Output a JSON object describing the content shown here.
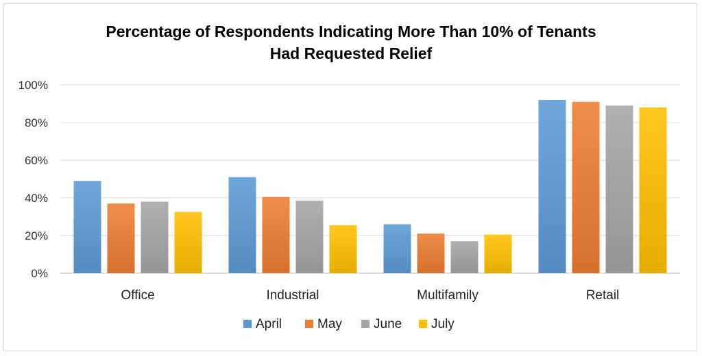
{
  "chart_data": {
    "type": "bar",
    "title_line1": "Percentage of Respondents Indicating More Than 10% of Tenants",
    "title_line2": "Had Requested Relief",
    "categories": [
      "Office",
      "Industrial",
      "Multifamily",
      "Retail"
    ],
    "series": [
      {
        "name": "April",
        "color": "#5b9bd5",
        "values": [
          49,
          51,
          26,
          92
        ]
      },
      {
        "name": "May",
        "color": "#ed7d31",
        "values": [
          37,
          40.5,
          21,
          91
        ]
      },
      {
        "name": "June",
        "color": "#a5a5a5",
        "values": [
          38,
          38.5,
          17,
          89
        ]
      },
      {
        "name": "July",
        "color": "#ffc000",
        "values": [
          32.5,
          25.5,
          20.5,
          88
        ]
      }
    ],
    "ylim": [
      0,
      100
    ],
    "y_ticks": [
      "0%",
      "20%",
      "40%",
      "60%",
      "80%",
      "100%"
    ],
    "y_tick_values": [
      0,
      20,
      40,
      60,
      80,
      100
    ],
    "xlabel": "",
    "ylabel": "",
    "legend_position": "bottom",
    "grid": true
  }
}
